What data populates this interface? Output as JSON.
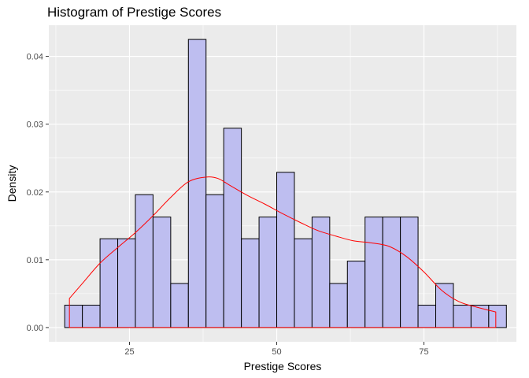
{
  "chart_data": {
    "type": "histogram",
    "title": "Histogram of Prestige Scores",
    "xlabel": "Prestige Scores",
    "ylabel": "Density",
    "xlim": [
      11.3,
      90.7
    ],
    "ylim": [
      -0.0021,
      0.0446
    ],
    "x_ticks": [
      25,
      50,
      75
    ],
    "x_tick_labels": [
      "25",
      "50",
      "75"
    ],
    "y_ticks": [
      0.0,
      0.01,
      0.02,
      0.03,
      0.04
    ],
    "y_tick_labels": [
      "0.00",
      "0.01",
      "0.02",
      "0.03",
      "0.04"
    ],
    "grid": true,
    "bin_width": 3,
    "bins": [
      {
        "x0": 14.0,
        "x1": 17.0,
        "density": 0.0033
      },
      {
        "x0": 17.0,
        "x1": 20.0,
        "density": 0.0033
      },
      {
        "x0": 20.0,
        "x1": 23.0,
        "density": 0.0131
      },
      {
        "x0": 23.0,
        "x1": 26.0,
        "density": 0.0131
      },
      {
        "x0": 26.0,
        "x1": 29.0,
        "density": 0.0196
      },
      {
        "x0": 29.0,
        "x1": 32.0,
        "density": 0.0163
      },
      {
        "x0": 32.0,
        "x1": 35.0,
        "density": 0.0065
      },
      {
        "x0": 35.0,
        "x1": 38.0,
        "density": 0.0425
      },
      {
        "x0": 38.0,
        "x1": 41.0,
        "density": 0.0196
      },
      {
        "x0": 41.0,
        "x1": 44.0,
        "density": 0.0294
      },
      {
        "x0": 44.0,
        "x1": 47.0,
        "density": 0.0131
      },
      {
        "x0": 47.0,
        "x1": 50.0,
        "density": 0.0163
      },
      {
        "x0": 50.0,
        "x1": 53.0,
        "density": 0.0229
      },
      {
        "x0": 53.0,
        "x1": 56.0,
        "density": 0.0131
      },
      {
        "x0": 56.0,
        "x1": 59.0,
        "density": 0.0163
      },
      {
        "x0": 59.0,
        "x1": 62.0,
        "density": 0.0065
      },
      {
        "x0": 62.0,
        "x1": 65.0,
        "density": 0.0098
      },
      {
        "x0": 65.0,
        "x1": 68.0,
        "density": 0.0163
      },
      {
        "x0": 68.0,
        "x1": 71.0,
        "density": 0.0163
      },
      {
        "x0": 71.0,
        "x1": 74.0,
        "density": 0.0163
      },
      {
        "x0": 74.0,
        "x1": 77.0,
        "density": 0.0033
      },
      {
        "x0": 77.0,
        "x1": 80.0,
        "density": 0.0065
      },
      {
        "x0": 80.0,
        "x1": 83.0,
        "density": 0.0033
      },
      {
        "x0": 83.0,
        "x1": 86.0,
        "density": 0.0033
      },
      {
        "x0": 86.0,
        "x1": 89.0,
        "density": 0.0033
      }
    ],
    "density_curve": {
      "x": [
        14.8,
        17,
        20,
        23,
        26,
        29,
        32,
        35,
        38,
        40,
        42,
        45,
        48,
        51,
        54,
        57,
        60,
        63,
        66,
        69,
        72,
        75,
        78,
        81,
        84,
        87.2
      ],
      "y": [
        0.0043,
        0.0065,
        0.0095,
        0.0118,
        0.014,
        0.0165,
        0.0192,
        0.0215,
        0.0222,
        0.022,
        0.021,
        0.0195,
        0.0182,
        0.0168,
        0.0155,
        0.0143,
        0.0135,
        0.0128,
        0.0125,
        0.012,
        0.0105,
        0.0082,
        0.0055,
        0.0038,
        0.003,
        0.0023
      ]
    },
    "colors": {
      "panel_bg": "#ebebeb",
      "grid": "#ffffff",
      "bar_fill": "#bebef0",
      "bar_stroke": "#000000",
      "curve": "#ff0000"
    }
  }
}
